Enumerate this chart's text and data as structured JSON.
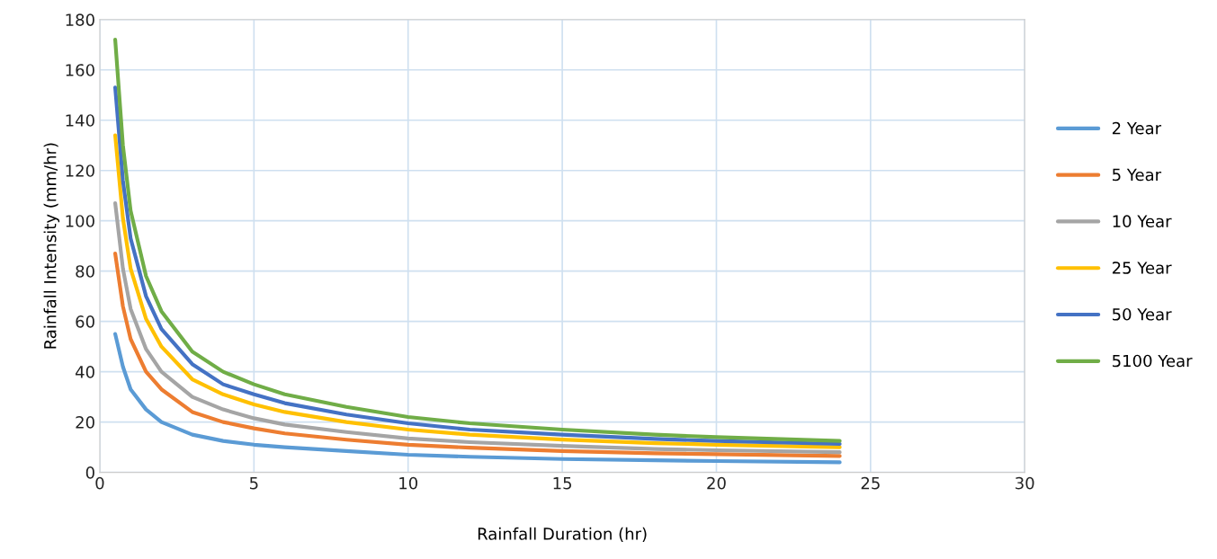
{
  "chart_data": {
    "type": "line",
    "xlabel": "Rainfall Duration (hr)",
    "ylabel": "Rainfall Intensity (mm/hr)",
    "x": [
      0.5,
      0.75,
      1,
      1.5,
      2,
      3,
      4,
      5,
      6,
      8,
      10,
      12,
      15,
      18,
      20,
      24
    ],
    "series": [
      {
        "name": "2 Year",
        "color": "#5b9bd5",
        "values": [
          55,
          42,
          33,
          25,
          20,
          15,
          12.5,
          11,
          10,
          8.5,
          7,
          6.2,
          5.3,
          4.8,
          4.5,
          4
        ]
      },
      {
        "name": "5 Year",
        "color": "#ed7d31",
        "values": [
          87,
          66,
          53,
          40,
          33,
          24,
          20,
          17.5,
          15.5,
          13,
          11,
          9.8,
          8.5,
          7.6,
          7.2,
          6.5
        ]
      },
      {
        "name": "10 Year",
        "color": "#a5a5a5",
        "values": [
          107,
          81,
          65,
          49,
          40,
          30,
          25,
          21.5,
          19,
          16,
          13.5,
          12,
          10.5,
          9.3,
          8.8,
          8
        ]
      },
      {
        "name": "25 Year",
        "color": "#ffc000",
        "values": [
          134,
          101,
          81,
          61,
          50,
          37,
          31,
          27,
          24,
          20,
          17,
          15,
          13,
          11.6,
          11,
          10
        ]
      },
      {
        "name": "50 Year",
        "color": "#4472c4",
        "values": [
          153,
          116,
          93,
          70,
          57,
          43,
          35,
          31,
          27.5,
          23,
          19.5,
          17,
          15,
          13.3,
          12.5,
          11.3
        ]
      },
      {
        "name": "5100 Year",
        "color": "#70ad47",
        "values": [
          172,
          130,
          104,
          78,
          64,
          48,
          40,
          35,
          31,
          26,
          22,
          19.5,
          17,
          15,
          14,
          12.5
        ]
      }
    ],
    "xlim": [
      0,
      30
    ],
    "xticks": [
      0,
      5,
      10,
      15,
      20,
      25,
      30
    ],
    "ylim": [
      0,
      180
    ],
    "yticks": [
      0,
      20,
      40,
      60,
      80,
      100,
      120,
      140,
      160,
      180
    ],
    "grid": true,
    "legend": "right",
    "marker": "none",
    "line_style": "solid"
  }
}
